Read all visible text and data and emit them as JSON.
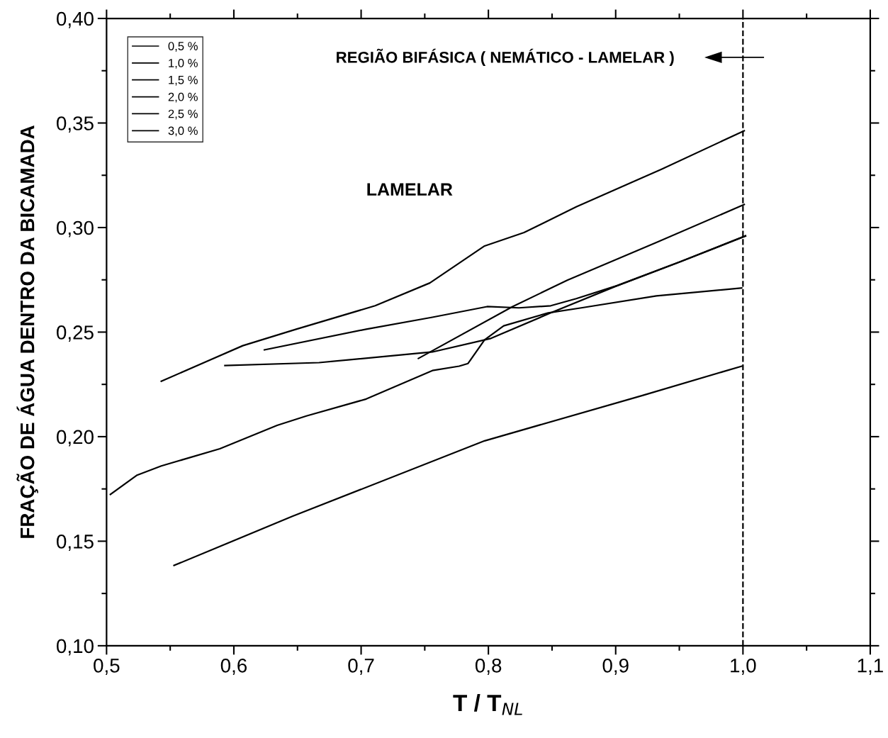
{
  "chart_data": {
    "type": "line",
    "xlabel": "T / T$_{NL}$",
    "ylabel": "FRAÇÃO DE ÁGUA DENTRO DA BICAMADA",
    "annotations": [
      "REGIÃO BIFÁSICA ( NEMÁTICO - LAMELAR )",
      "LAMELAR"
    ],
    "series": [
      {
        "name": "0,5 %",
        "color": "#000000",
        "x": [
          0.543,
          0.607,
          0.649,
          0.711,
          0.754,
          0.797,
          0.828,
          0.869,
          0.936,
          1.001
        ],
        "values": [
          0.2265,
          0.2435,
          0.2514,
          0.2626,
          0.2735,
          0.2912,
          0.2976,
          0.3099,
          0.3279,
          0.3463
        ]
      },
      {
        "name": "1,0 %",
        "color": "#000000",
        "x": [
          0.745,
          0.819,
          0.862,
          0.932,
          1.001
        ],
        "values": [
          0.2374,
          0.2622,
          0.2748,
          0.2929,
          0.311
        ]
      },
      {
        "name": "1,5 %",
        "color": "#000000",
        "x": [
          0.624,
          0.704,
          0.756,
          0.799,
          0.824,
          0.849,
          0.869,
          0.902,
          0.951,
          1.002
        ],
        "values": [
          0.2415,
          0.2514,
          0.2571,
          0.2622,
          0.2616,
          0.2626,
          0.266,
          0.2724,
          0.2837,
          0.296
        ]
      },
      {
        "name": "2,0 %",
        "color": "#000000",
        "x": [
          0.593,
          0.667,
          0.756,
          0.802,
          0.849,
          0.902,
          0.951,
          1.002
        ],
        "values": [
          0.234,
          0.2354,
          0.2405,
          0.247,
          0.2592,
          0.2724,
          0.2837,
          0.296
        ]
      },
      {
        "name": "2,5 %",
        "color": "#000000",
        "x": [
          0.503,
          0.524,
          0.543,
          0.589,
          0.634,
          0.657,
          0.704,
          0.756,
          0.777,
          0.784,
          0.797,
          0.812,
          0.847,
          0.873,
          0.932,
          0.999
        ],
        "values": [
          0.1724,
          0.1816,
          0.186,
          0.1942,
          0.2054,
          0.2099,
          0.218,
          0.2316,
          0.2337,
          0.235,
          0.2463,
          0.253,
          0.2592,
          0.2616,
          0.2673,
          0.2711
        ]
      },
      {
        "name": "3,0 %",
        "color": "#000000",
        "x": [
          0.553,
          0.646,
          0.797,
          0.921,
          0.999
        ],
        "values": [
          0.1384,
          0.1619,
          0.198,
          0.2197,
          0.2337
        ]
      }
    ],
    "ref_lines": [
      {
        "axis": "x",
        "value": 1.0,
        "color": "#000000",
        "line_style": "dashed"
      }
    ],
    "xlim": [
      0.5,
      1.1
    ],
    "ylim": [
      0.1,
      0.4
    ],
    "xticks": [
      {
        "value": 0.5,
        "label": "0,5"
      },
      {
        "value": 0.6,
        "label": "0,6"
      },
      {
        "value": 0.7,
        "label": "0,7"
      },
      {
        "value": 0.8,
        "label": "0,8"
      },
      {
        "value": 0.9,
        "label": "0,9"
      },
      {
        "value": 1.0,
        "label": "1,0"
      },
      {
        "value": 1.1,
        "label": "1,1"
      }
    ],
    "yticks": [
      {
        "value": 0.1,
        "label": "0,10"
      },
      {
        "value": 0.15,
        "label": "0,15"
      },
      {
        "value": 0.2,
        "label": "0,20"
      },
      {
        "value": 0.25,
        "label": "0,25"
      },
      {
        "value": 0.3,
        "label": "0,30"
      },
      {
        "value": 0.35,
        "label": "0,35"
      },
      {
        "value": 0.4,
        "label": "0,40"
      }
    ],
    "grid": false,
    "legend": "top left",
    "marker": "none",
    "line_style": "solid"
  }
}
